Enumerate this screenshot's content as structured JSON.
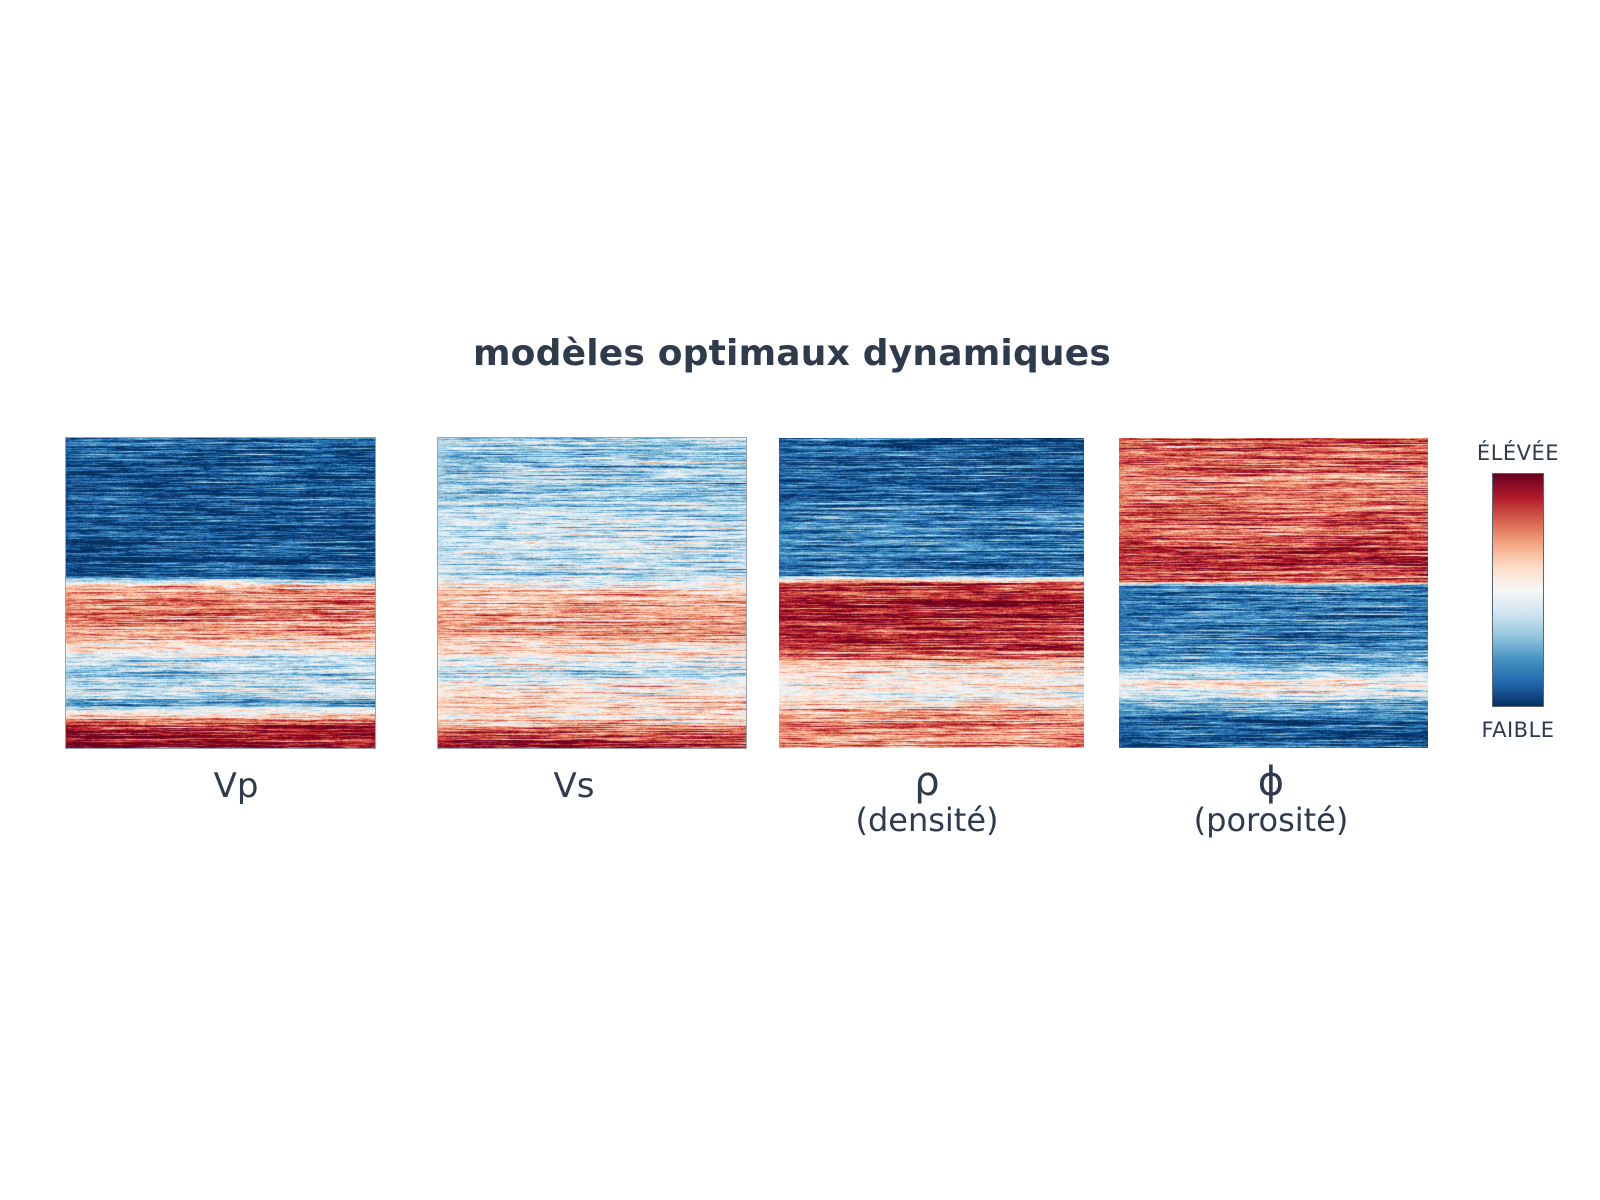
{
  "title": "modèles optimaux dynamiques",
  "panels": [
    {
      "label": "Vp",
      "sub": ""
    },
    {
      "label": "Vs",
      "sub": ""
    },
    {
      "label": "ρ",
      "sub": "(densité)"
    },
    {
      "label": "ϕ",
      "sub": "(porosité)"
    }
  ],
  "colorbar": {
    "top_label": "ÉLÉVÉE",
    "bottom_label": "FAIBLE",
    "colors": [
      "#67001f",
      "#b2182b",
      "#d6604d",
      "#f4a582",
      "#fddbc7",
      "#f7f7f7",
      "#d1e5f0",
      "#92c5de",
      "#4393c3",
      "#2166ac",
      "#053061"
    ]
  }
}
